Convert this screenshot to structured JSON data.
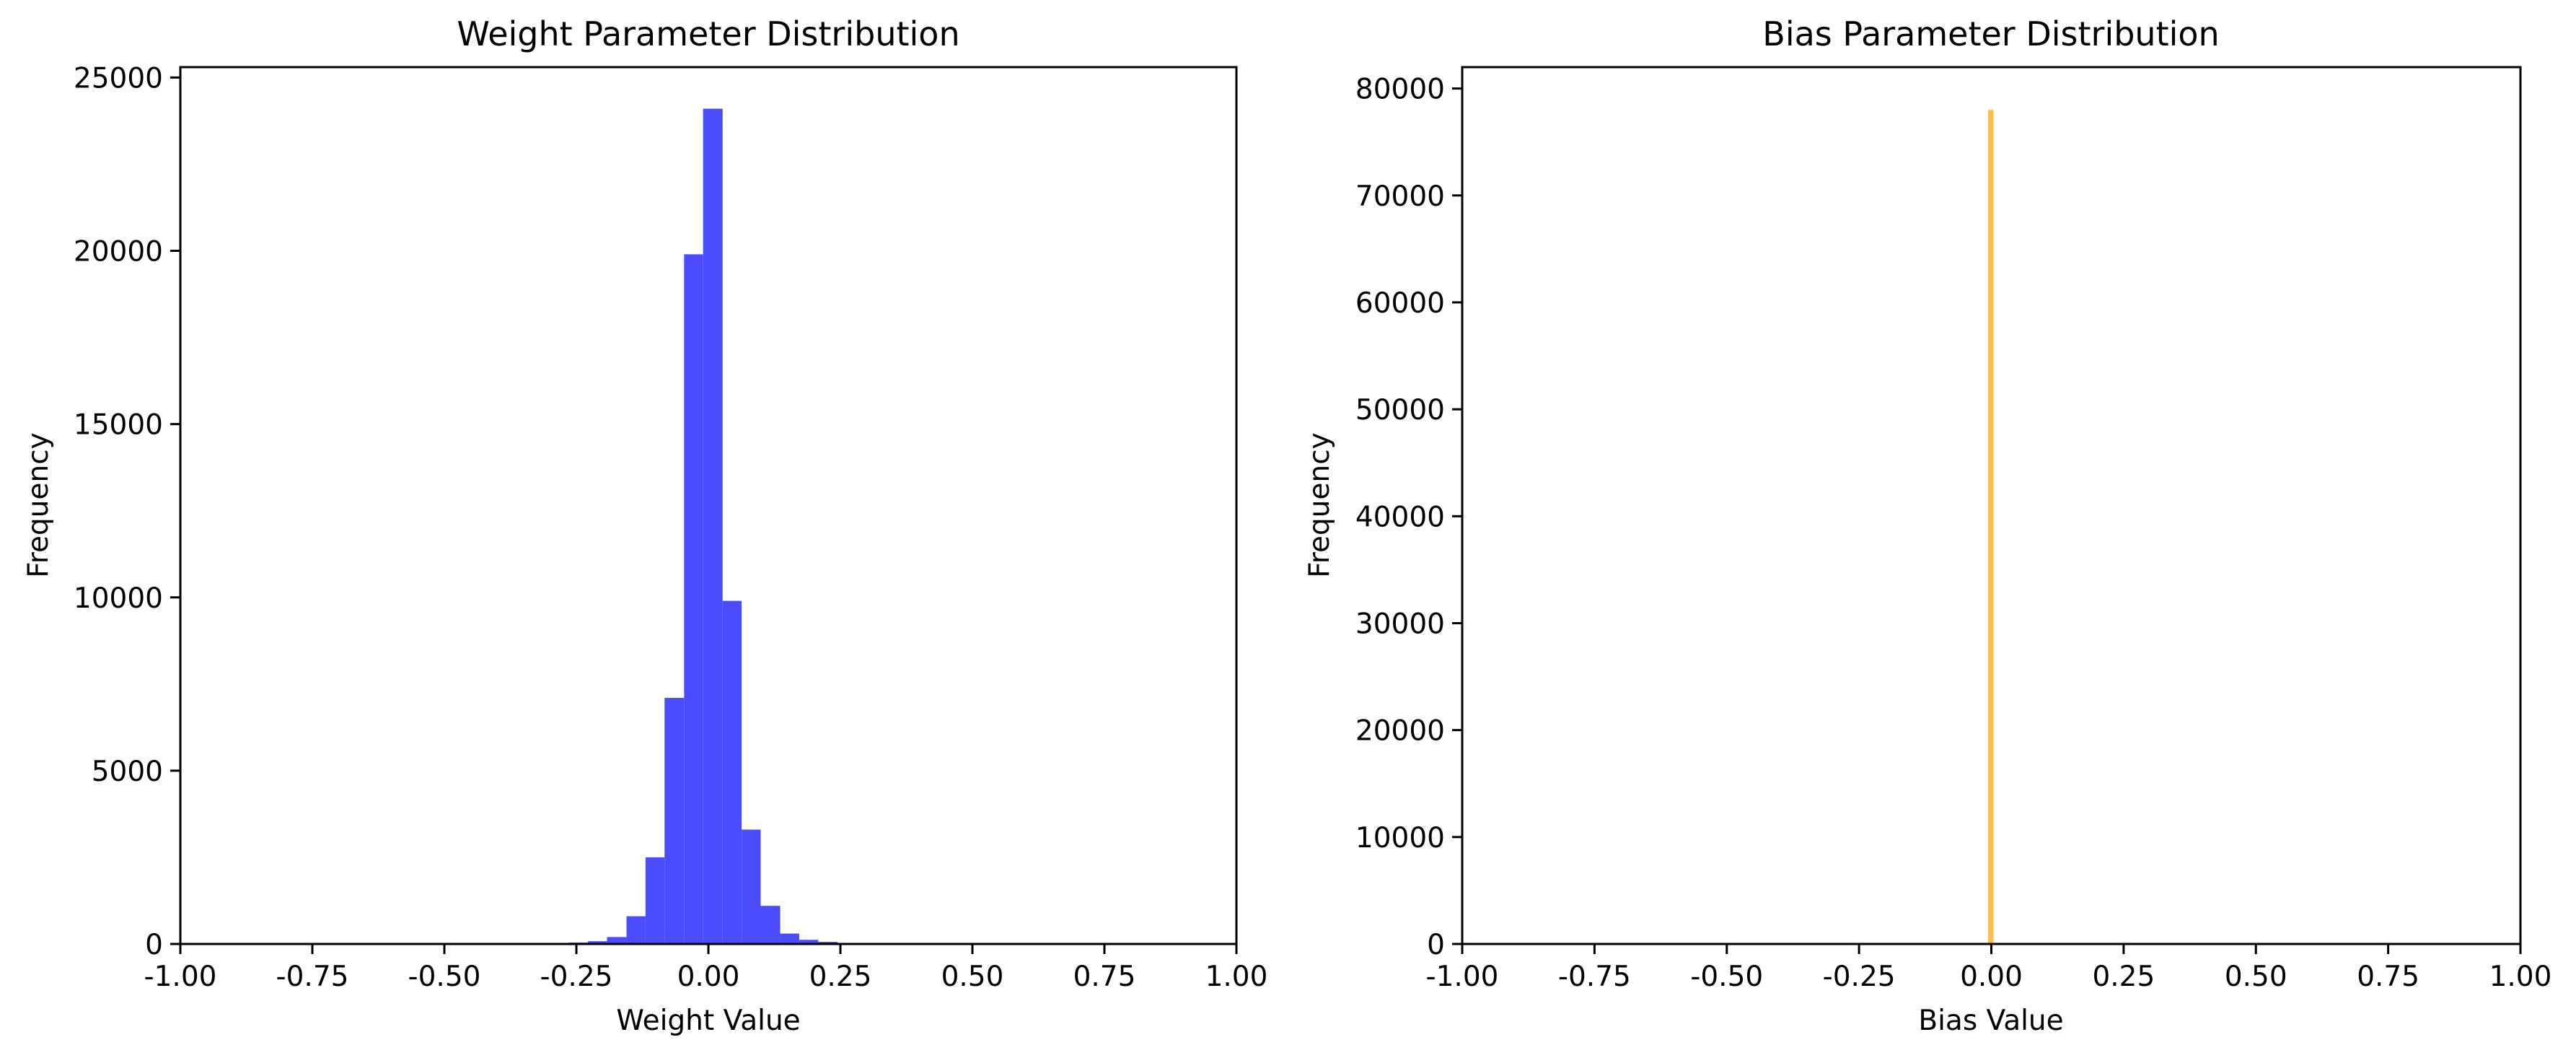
{
  "chart_data": [
    {
      "type": "bar",
      "title": "Weight Parameter Distribution",
      "xlabel": "Weight Value",
      "ylabel": "Frequency",
      "xlim": [
        -1.0,
        1.0
      ],
      "ylim": [
        0,
        25300
      ],
      "xticks": [
        "-1.00",
        "-0.75",
        "-0.50",
        "-0.25",
        "0.00",
        "0.25",
        "0.50",
        "0.75",
        "1.00"
      ],
      "yticks": [
        "0",
        "5000",
        "10000",
        "15000",
        "20000",
        "25000"
      ],
      "color": "#4c4cff",
      "bins": [
        {
          "x0": -0.337,
          "x1": -0.301,
          "value": 10
        },
        {
          "x0": -0.301,
          "x1": -0.264,
          "value": 20
        },
        {
          "x0": -0.264,
          "x1": -0.228,
          "value": 40
        },
        {
          "x0": -0.228,
          "x1": -0.192,
          "value": 80
        },
        {
          "x0": -0.192,
          "x1": -0.155,
          "value": 200
        },
        {
          "x0": -0.155,
          "x1": -0.119,
          "value": 800
        },
        {
          "x0": -0.119,
          "x1": -0.083,
          "value": 2500
        },
        {
          "x0": -0.083,
          "x1": -0.046,
          "value": 7100
        },
        {
          "x0": -0.046,
          "x1": -0.01,
          "value": 19900
        },
        {
          "x0": -0.01,
          "x1": 0.027,
          "value": 24100
        },
        {
          "x0": 0.027,
          "x1": 0.063,
          "value": 9900
        },
        {
          "x0": 0.063,
          "x1": 0.099,
          "value": 3300
        },
        {
          "x0": 0.099,
          "x1": 0.136,
          "value": 1100
        },
        {
          "x0": 0.136,
          "x1": 0.172,
          "value": 300
        },
        {
          "x0": 0.172,
          "x1": 0.208,
          "value": 120
        },
        {
          "x0": 0.208,
          "x1": 0.245,
          "value": 60
        },
        {
          "x0": 0.245,
          "x1": 0.281,
          "value": 30
        },
        {
          "x0": 0.281,
          "x1": 0.317,
          "value": 15
        },
        {
          "x0": 0.317,
          "x1": 0.354,
          "value": 8
        },
        {
          "x0": 0.354,
          "x1": 0.39,
          "value": 4
        },
        {
          "x0": 0.39,
          "x1": 0.426,
          "value": 2
        }
      ]
    },
    {
      "type": "bar",
      "title": "Bias Parameter Distribution",
      "xlabel": "Bias Value",
      "ylabel": "Frequency",
      "xlim": [
        -1.0,
        1.0
      ],
      "ylim": [
        0,
        82000
      ],
      "xticks": [
        "-1.00",
        "-0.75",
        "-0.50",
        "-0.25",
        "0.00",
        "0.25",
        "0.50",
        "0.75",
        "1.00"
      ],
      "yticks": [
        "0",
        "10000",
        "20000",
        "30000",
        "40000",
        "50000",
        "60000",
        "70000",
        "80000"
      ],
      "color": "#ffbf4c",
      "bins": [
        {
          "x0": -0.006,
          "x1": 0.004,
          "value": 78000
        }
      ]
    }
  ]
}
